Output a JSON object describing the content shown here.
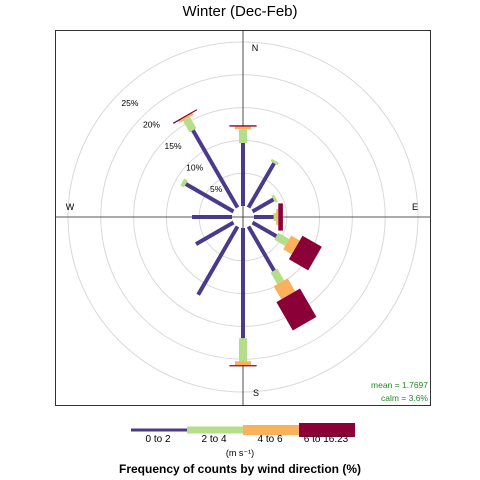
{
  "chart_data": {
    "type": "wind-rose",
    "title": "Winter (Dec-Feb)",
    "caption": "Frequency of counts by wind direction (%)",
    "units": "(m s⁻¹)",
    "compass": {
      "north": "N",
      "east": "E",
      "south": "S",
      "west": "W"
    },
    "radial_ticks": [
      5,
      10,
      15,
      20,
      25
    ],
    "radial_tick_labels": [
      "5%",
      "10%",
      "15%",
      "20%",
      "25%"
    ],
    "radial_max": 25,
    "calm_percent": 3.6,
    "stats": {
      "mean": "mean = 1.7697",
      "calm": "calm = 3.6%"
    },
    "bins": [
      {
        "label": "0 to 2",
        "color": "#4B3A8A"
      },
      {
        "label": "2 to 4",
        "color": "#B5DE8A"
      },
      {
        "label": "4 to 6",
        "color": "#F9B15B"
      },
      {
        "label": "6 to 16.23",
        "color": "#8C0038"
      }
    ],
    "directions": [
      {
        "angle": 0,
        "values": [
          9.6,
          2.1,
          0.4,
          0.2
        ]
      },
      {
        "angle": 30,
        "values": [
          7.8,
          0.4,
          0.0,
          0.0
        ]
      },
      {
        "angle": 60,
        "values": [
          3.7,
          0.4,
          0.0,
          0.0
        ]
      },
      {
        "angle": 90,
        "values": [
          3.0,
          0.4,
          0.3,
          0.7
        ]
      },
      {
        "angle": 120,
        "values": [
          4.2,
          1.9,
          1.5,
          3.4
        ]
      },
      {
        "angle": 150,
        "values": [
          7.8,
          2.0,
          2.3,
          5.0
        ]
      },
      {
        "angle": 180,
        "values": [
          16.8,
          3.5,
          0.6,
          0.2
        ]
      },
      {
        "angle": 210,
        "values": [
          12.0,
          0.0,
          0.0,
          0.0
        ]
      },
      {
        "angle": 240,
        "values": [
          6.6,
          0.0,
          0.0,
          0.0
        ]
      },
      {
        "angle": 270,
        "values": [
          6.1,
          0.0,
          0.0,
          0.0
        ]
      },
      {
        "angle": 300,
        "values": [
          8.4,
          0.6,
          0.0,
          0.0
        ]
      },
      {
        "angle": 330,
        "values": [
          13.6,
          2.0,
          0.3,
          0.2
        ]
      }
    ]
  }
}
